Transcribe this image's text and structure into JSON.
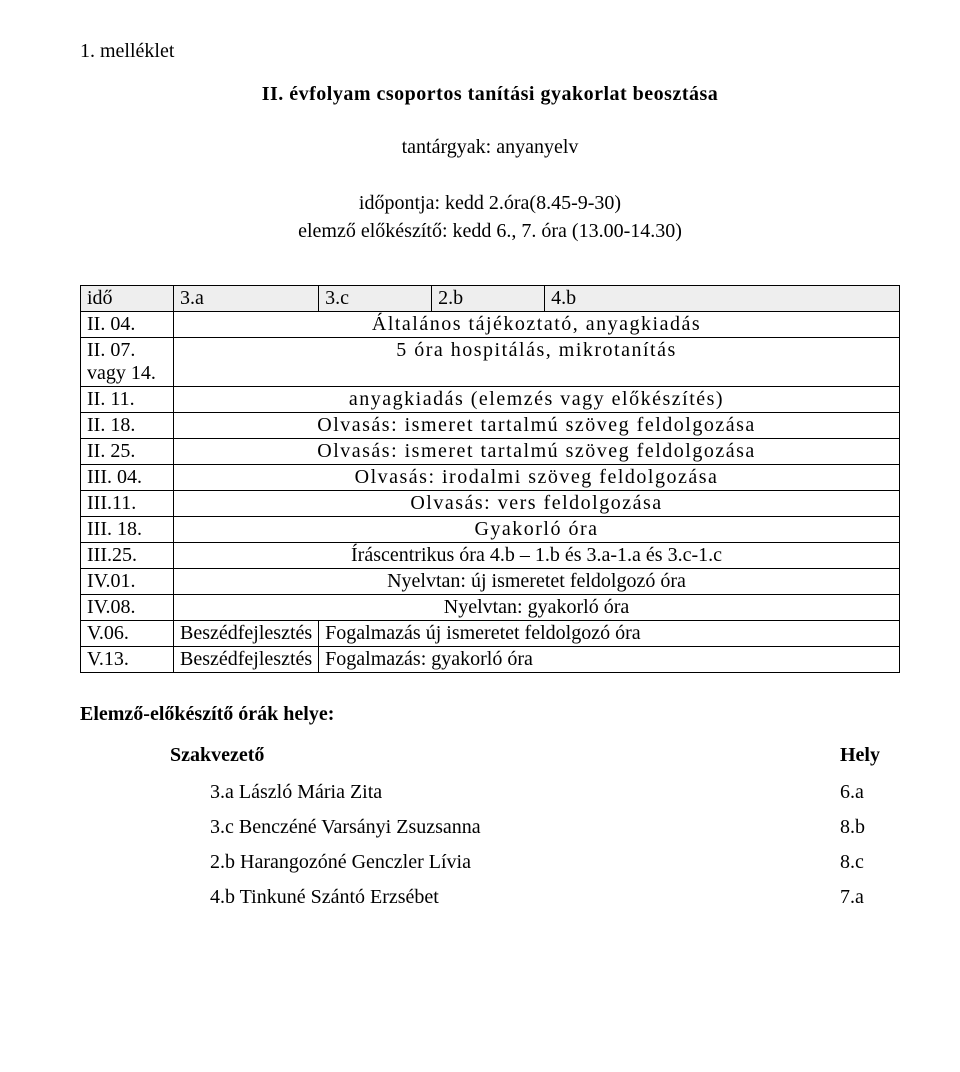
{
  "appendix": "1. melléklet",
  "heading": "II. évfolyam csoportos tanítási gyakorlat beosztása",
  "subject": "tantárgyak: anyanyelv",
  "timing_line1": "időpontja: kedd 2.óra(8.45-9-30)",
  "timing_line2": "elemző előkészítő: kedd 6., 7. óra (13.00-14.30)",
  "header": {
    "c1": "idő",
    "c2": "3.a",
    "c3": "3.c",
    "c4": "2.b",
    "c5": "4.b"
  },
  "rows": [
    {
      "c1": "II. 04.",
      "rest": "Általános tájékoztató, anyagkiadás",
      "spaced": true,
      "center": true
    },
    {
      "c1": "II. 07. vagy 14.",
      "rest": "5 óra hospitálás, mikrotanítás",
      "spaced": true,
      "center": true
    },
    {
      "c1": "II. 11.",
      "rest": "anyagkiadás (elemzés vagy előkészítés)",
      "spaced": true,
      "center": true
    },
    {
      "c1": "II. 18.",
      "rest": "Olvasás: ismeret tartalmú szöveg feldolgozása",
      "spaced": true,
      "center": true
    },
    {
      "c1": "II. 25.",
      "rest": "Olvasás: ismeret tartalmú szöveg feldolgozása",
      "spaced": true,
      "center": true
    },
    {
      "c1": "III. 04.",
      "rest": "Olvasás: irodalmi szöveg feldolgozása",
      "spaced": true,
      "center": true
    },
    {
      "c1": "III.11.",
      "rest": "Olvasás: vers feldolgozása",
      "spaced": true,
      "center": true
    },
    {
      "c1": "III. 18.",
      "rest": "Gyakorló óra",
      "spaced": true,
      "center": true
    },
    {
      "c1": "III.25.",
      "rest": "Íráscentrikus óra      4.b – 1.b    és     3.a-1.a    és    3.c-1.c",
      "spaced": false,
      "center": true
    },
    {
      "c1": "IV.01.",
      "rest": "Nyelvtan: új ismeretet feldolgozó óra",
      "spaced": false,
      "center": true
    },
    {
      "c1": "IV.08.",
      "rest": "Nyelvtan: gyakorló óra",
      "spaced": false,
      "center": true
    },
    {
      "c1": "V.06.",
      "c2text": "Beszédfejlesztés",
      "rest": "Fogalmazás új ismeretet feldolgozó óra",
      "spaced": false,
      "center": false
    },
    {
      "c1": "V.13.",
      "c2text": "Beszédfejlesztés",
      "rest": "Fogalmazás: gyakorló óra",
      "spaced": false,
      "center": false
    }
  ],
  "section_title": "Elemző-előkészítő órák helye:",
  "leader_label": "Szakvezető",
  "place_label": "Hely",
  "entries": [
    {
      "name": "3.a László Mária Zita",
      "place": "6.a"
    },
    {
      "name": "3.c Benczéné Varsányi Zsuzsanna",
      "place": "8.b"
    },
    {
      "name": "2.b Harangozóné Genczler Lívia",
      "place": "8.c"
    },
    {
      "name": "4.b Tinkuné Szántó Erzsébet",
      "place": "7.a"
    }
  ]
}
